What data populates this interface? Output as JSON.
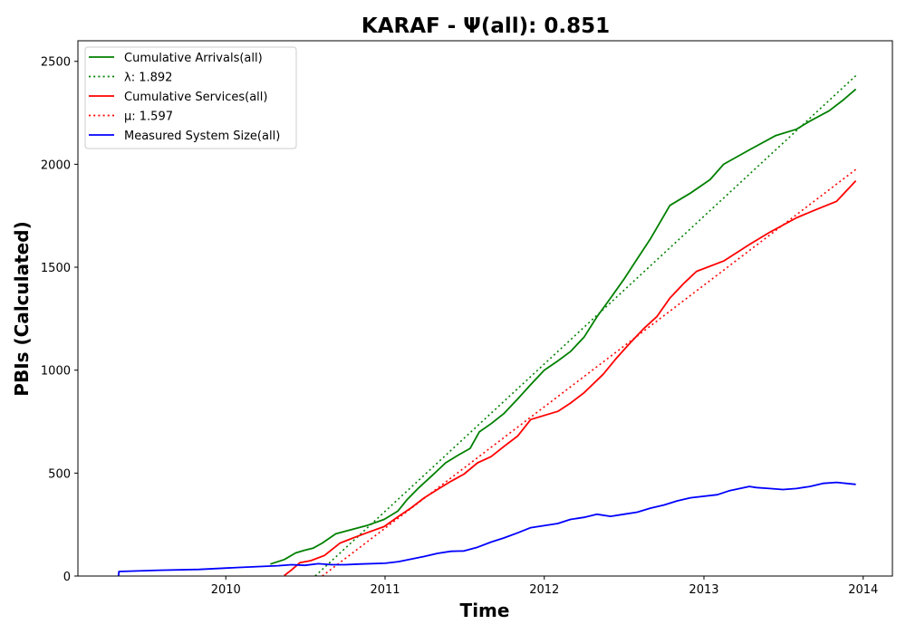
{
  "chart_data": {
    "type": "line",
    "title": "KARAF -  Ψ(all): 0.851",
    "xlabel": "Time",
    "ylabel": "PBIs (Calculated)",
    "xlim": [
      "2009-01-27",
      "2014-03-09"
    ],
    "ylim": [
      0,
      2600
    ],
    "x_ticks": [
      "2010",
      "2011",
      "2012",
      "2013",
      "2014"
    ],
    "y_ticks": [
      0,
      500,
      1000,
      1500,
      2000,
      2500
    ],
    "grid": false,
    "legend_position": "top-left",
    "series": [
      {
        "name": "Cumulative Arrivals(all)",
        "style": "solid",
        "color": "#008000",
        "points": [
          [
            "2010-04-13",
            58
          ],
          [
            "2010-05-15",
            80
          ],
          [
            "2010-06-10",
            112
          ],
          [
            "2010-06-30",
            125
          ],
          [
            "2010-07-20",
            135
          ],
          [
            "2010-08-10",
            160
          ],
          [
            "2010-09-10",
            205
          ],
          [
            "2010-10-15",
            225
          ],
          [
            "2010-11-20",
            245
          ],
          [
            "2010-12-30",
            275
          ],
          [
            "2011-01-30",
            315
          ],
          [
            "2011-02-20",
            370
          ],
          [
            "2011-03-20",
            430
          ],
          [
            "2011-04-20",
            490
          ],
          [
            "2011-05-20",
            550
          ],
          [
            "2011-06-20",
            590
          ],
          [
            "2011-07-15",
            620
          ],
          [
            "2011-08-05",
            700
          ],
          [
            "2011-09-01",
            740
          ],
          [
            "2011-10-01",
            790
          ],
          [
            "2011-11-01",
            860
          ],
          [
            "2011-12-01",
            930
          ],
          [
            "2012-01-01",
            1000
          ],
          [
            "2012-02-01",
            1045
          ],
          [
            "2012-03-01",
            1090
          ],
          [
            "2012-04-01",
            1160
          ],
          [
            "2012-05-01",
            1260
          ],
          [
            "2012-06-01",
            1350
          ],
          [
            "2012-07-01",
            1440
          ],
          [
            "2012-08-01",
            1540
          ],
          [
            "2012-09-01",
            1640
          ],
          [
            "2012-10-15",
            1800
          ],
          [
            "2012-12-01",
            1860
          ],
          [
            "2013-01-15",
            1925
          ],
          [
            "2013-02-15",
            2000
          ],
          [
            "2013-04-15",
            2070
          ],
          [
            "2013-06-15",
            2140
          ],
          [
            "2013-08-01",
            2170
          ],
          [
            "2013-09-01",
            2210
          ],
          [
            "2013-10-15",
            2260
          ],
          [
            "2013-11-15",
            2310
          ],
          [
            "2013-12-15",
            2365
          ]
        ]
      },
      {
        "name": "λ: 1.892",
        "style": "dotted",
        "color": "#008000",
        "points": [
          [
            "2010-07-25",
            0
          ],
          [
            "2013-12-15",
            2430
          ]
        ]
      },
      {
        "name": "Cumulative Services(all)",
        "style": "solid",
        "color": "#ff0000",
        "points": [
          [
            "2010-05-15",
            2
          ],
          [
            "2010-06-01",
            30
          ],
          [
            "2010-06-20",
            65
          ],
          [
            "2010-07-15",
            75
          ],
          [
            "2010-08-15",
            100
          ],
          [
            "2010-09-20",
            160
          ],
          [
            "2010-10-20",
            185
          ],
          [
            "2010-11-20",
            210
          ],
          [
            "2010-12-30",
            240
          ],
          [
            "2011-02-01",
            290
          ],
          [
            "2011-03-01",
            330
          ],
          [
            "2011-04-01",
            380
          ],
          [
            "2011-05-01",
            420
          ],
          [
            "2011-06-01",
            460
          ],
          [
            "2011-07-01",
            495
          ],
          [
            "2011-08-01",
            550
          ],
          [
            "2011-09-01",
            580
          ],
          [
            "2011-10-01",
            630
          ],
          [
            "2011-11-01",
            680
          ],
          [
            "2011-12-01",
            760
          ],
          [
            "2012-01-01",
            780
          ],
          [
            "2012-02-01",
            800
          ],
          [
            "2012-03-01",
            840
          ],
          [
            "2012-04-01",
            890
          ],
          [
            "2012-05-15",
            980
          ],
          [
            "2012-06-15",
            1060
          ],
          [
            "2012-07-15",
            1130
          ],
          [
            "2012-08-15",
            1200
          ],
          [
            "2012-09-15",
            1260
          ],
          [
            "2012-10-15",
            1350
          ],
          [
            "2012-11-15",
            1420
          ],
          [
            "2012-12-15",
            1480
          ],
          [
            "2013-02-15",
            1530
          ],
          [
            "2013-04-15",
            1610
          ],
          [
            "2013-06-01",
            1670
          ],
          [
            "2013-08-01",
            1740
          ],
          [
            "2013-09-15",
            1780
          ],
          [
            "2013-11-01",
            1820
          ],
          [
            "2013-12-15",
            1920
          ]
        ]
      },
      {
        "name": "μ: 1.597",
        "style": "dotted",
        "color": "#ff0000",
        "points": [
          [
            "2010-08-10",
            0
          ],
          [
            "2013-12-15",
            1975
          ]
        ]
      },
      {
        "name": "Measured System Size(all)",
        "style": "solid",
        "color": "#0000ff",
        "points": [
          [
            "2009-04-30",
            0
          ],
          [
            "2009-05-01",
            22
          ],
          [
            "2009-08-01",
            28
          ],
          [
            "2009-11-01",
            32
          ],
          [
            "2010-02-01",
            42
          ],
          [
            "2010-05-01",
            50
          ],
          [
            "2010-06-01",
            55
          ],
          [
            "2010-07-01",
            52
          ],
          [
            "2010-08-01",
            60
          ],
          [
            "2010-09-01",
            55
          ],
          [
            "2010-10-01",
            55
          ],
          [
            "2010-11-01",
            58
          ],
          [
            "2011-01-01",
            62
          ],
          [
            "2011-02-01",
            70
          ],
          [
            "2011-04-01",
            95
          ],
          [
            "2011-05-01",
            110
          ],
          [
            "2011-06-01",
            120
          ],
          [
            "2011-07-01",
            122
          ],
          [
            "2011-08-01",
            140
          ],
          [
            "2011-09-01",
            165
          ],
          [
            "2011-10-01",
            185
          ],
          [
            "2011-11-01",
            210
          ],
          [
            "2011-12-01",
            235
          ],
          [
            "2012-02-01",
            255
          ],
          [
            "2012-03-01",
            275
          ],
          [
            "2012-04-01",
            285
          ],
          [
            "2012-05-01",
            300
          ],
          [
            "2012-06-01",
            290
          ],
          [
            "2012-07-01",
            300
          ],
          [
            "2012-08-01",
            310
          ],
          [
            "2012-09-01",
            330
          ],
          [
            "2012-10-01",
            345
          ],
          [
            "2012-11-01",
            365
          ],
          [
            "2012-12-01",
            380
          ],
          [
            "2013-02-01",
            395
          ],
          [
            "2013-03-01",
            415
          ],
          [
            "2013-04-15",
            435
          ],
          [
            "2013-05-01",
            430
          ],
          [
            "2013-06-01",
            425
          ],
          [
            "2013-07-01",
            420
          ],
          [
            "2013-08-01",
            425
          ],
          [
            "2013-09-01",
            435
          ],
          [
            "2013-10-01",
            450
          ],
          [
            "2013-11-01",
            455
          ],
          [
            "2013-12-15",
            445
          ]
        ]
      }
    ]
  }
}
